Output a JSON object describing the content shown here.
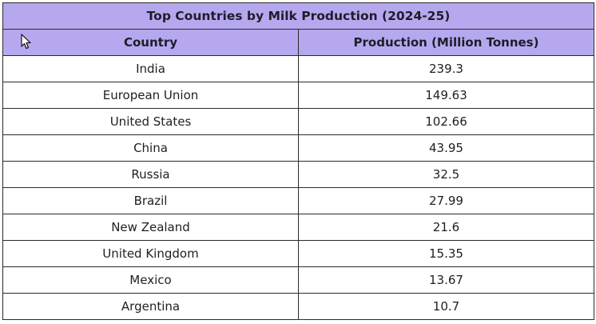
{
  "table": {
    "title": "Top Countries by Milk Production (2024-25)",
    "columns": [
      "Country",
      "Production (Million Tonnes)"
    ],
    "rows": [
      {
        "country": "India",
        "production": "239.3"
      },
      {
        "country": "European Union",
        "production": "149.63"
      },
      {
        "country": "United States",
        "production": "102.66"
      },
      {
        "country": "China",
        "production": "43.95"
      },
      {
        "country": "Russia",
        "production": "32.5"
      },
      {
        "country": "Brazil",
        "production": "27.99"
      },
      {
        "country": "New Zealand",
        "production": "21.6"
      },
      {
        "country": "United Kingdom",
        "production": "15.35"
      },
      {
        "country": "Mexico",
        "production": "13.67"
      },
      {
        "country": "Argentina",
        "production": "10.7"
      }
    ]
  },
  "colors": {
    "header_bg": "#b6a8ee",
    "border": "#2b2b2b"
  },
  "icons": {
    "cursor": "mouse-pointer-icon"
  }
}
